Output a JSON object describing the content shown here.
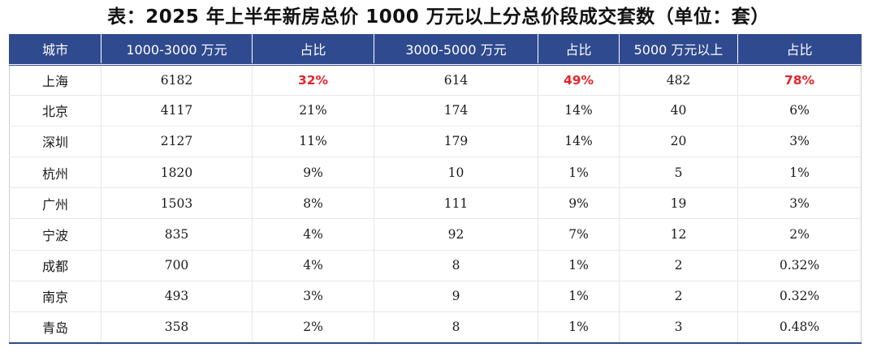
{
  "title": "表：2025 年上半年新房总价 1000 万元以上分总价段成交套数（单位：套）",
  "highlight_color": "#e8242b",
  "header_color": "#2f4a8e",
  "columns": [
    "城市",
    "1000-3000 万元",
    "占比",
    "3000-5000 万元",
    "占比",
    "5000 万元以上",
    "占比"
  ],
  "rows": [
    [
      "上海",
      "6182",
      "32%",
      "614",
      "49%",
      "482",
      "78%"
    ],
    [
      "北京",
      "4117",
      "21%",
      "174",
      "14%",
      "40",
      "6%"
    ],
    [
      "深圳",
      "2127",
      "11%",
      "179",
      "14%",
      "20",
      "3%"
    ],
    [
      "杭州",
      "1820",
      "9%",
      "10",
      "1%",
      "5",
      "1%"
    ],
    [
      "广州",
      "1503",
      "8%",
      "111",
      "9%",
      "19",
      "3%"
    ],
    [
      "宁波",
      "835",
      "4%",
      "92",
      "7%",
      "12",
      "2%"
    ],
    [
      "成都",
      "700",
      "4%",
      "8",
      "1%",
      "2",
      "0.32%"
    ],
    [
      "南京",
      "493",
      "3%",
      "9",
      "1%",
      "2",
      "0.32%"
    ],
    [
      "青岛",
      "358",
      "2%",
      "8",
      "1%",
      "3",
      "0.48%"
    ]
  ]
}
